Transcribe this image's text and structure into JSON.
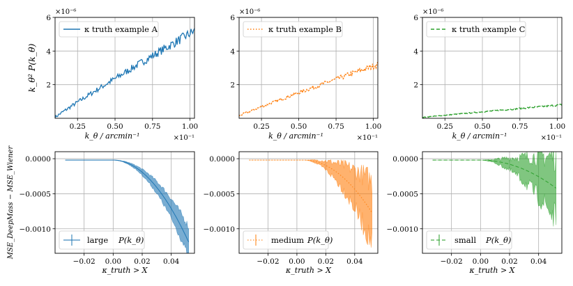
{
  "chart_data": [
    {
      "id": "top-A",
      "type": "line",
      "style": "solid",
      "color": "#1f77b4",
      "legend": "κ truth example A",
      "xlabel": "k_θ / arcmin⁻¹",
      "ylabel": "k_θ² P(k_θ)",
      "xlim": [
        0.01,
        0.103
      ],
      "ylim": [
        0,
        6
      ],
      "xticks": [
        0.025,
        0.05,
        0.075,
        0.1
      ],
      "xtick_labels": [
        "0.25",
        "0.50",
        "0.75",
        "1.00"
      ],
      "yticks": [
        2,
        4,
        6
      ],
      "ytick_labels": [
        "2",
        "4",
        "6"
      ],
      "x_multiplier": "×10⁻¹",
      "y_multiplier": "×10⁻⁶",
      "series": [
        {
          "name": "κ truth example A",
          "x_start": 0.01,
          "x_end": 0.103,
          "y_start": 0.05,
          "y_end": 5.2,
          "noise": 0.22
        }
      ]
    },
    {
      "id": "top-B",
      "type": "line",
      "style": "dotted",
      "color": "#ff7f0e",
      "legend": "κ truth example B",
      "xlabel": "k_θ / arcmin⁻¹",
      "ylabel": "",
      "xlim": [
        0.01,
        0.103
      ],
      "ylim": [
        0,
        6
      ],
      "xticks": [
        0.025,
        0.05,
        0.075,
        0.1
      ],
      "xtick_labels": [
        "0.25",
        "0.50",
        "0.75",
        "1.00"
      ],
      "yticks": [
        2,
        4,
        6
      ],
      "ytick_labels": [
        "2",
        "4",
        "6"
      ],
      "x_multiplier": "×10⁻¹",
      "y_multiplier": "×10⁻⁶",
      "series": [
        {
          "name": "κ truth example B",
          "x_start": 0.01,
          "x_end": 0.103,
          "y_start": 0.15,
          "y_end": 3.2,
          "noise": 0.13
        }
      ]
    },
    {
      "id": "top-C",
      "type": "line",
      "style": "dashed",
      "color": "#2ca02c",
      "legend": "κ truth example C",
      "xlabel": "k_θ / arcmin⁻¹",
      "ylabel": "",
      "xlim": [
        0.01,
        0.103
      ],
      "ylim": [
        0,
        6
      ],
      "xticks": [
        0.025,
        0.05,
        0.075,
        0.1
      ],
      "xtick_labels": [
        "0.25",
        "0.50",
        "0.75",
        "1.00"
      ],
      "yticks": [
        2,
        4,
        6
      ],
      "ytick_labels": [
        "2",
        "4",
        "6"
      ],
      "x_multiplier": "×10⁻¹",
      "y_multiplier": "×10⁻⁶",
      "series": [
        {
          "name": "κ truth example C",
          "x_start": 0.01,
          "x_end": 0.103,
          "y_start": 0.05,
          "y_end": 0.8,
          "noise": 0.04
        }
      ]
    },
    {
      "id": "bottom-large",
      "type": "area",
      "style": "solid",
      "color": "#1f77b4",
      "legend": "large",
      "legend_math": "P(k_θ)",
      "xlabel": "κ_truth > X",
      "ylabel": "MSE_DeepMass − MSE_Wiener",
      "xlim": [
        -0.04,
        0.056
      ],
      "ylim": [
        -0.00135,
        0.0001
      ],
      "xticks": [
        -0.02,
        0.0,
        0.02,
        0.04
      ],
      "xtick_labels": [
        "−0.02",
        "0.00",
        "0.02",
        "0.04"
      ],
      "yticks": [
        0.0,
        -0.0005,
        -0.001
      ],
      "ytick_labels": [
        "0.0000",
        "−0.0005",
        "−0.0010"
      ],
      "series": [
        {
          "name": "large",
          "x_start": -0.033,
          "x_end": 0.052,
          "knee": 0.0,
          "y_end": -0.00117,
          "err_end": 0.00022,
          "err_noise": 0.25
        }
      ]
    },
    {
      "id": "bottom-medium",
      "type": "area",
      "style": "dotted",
      "color": "#ff7f0e",
      "legend": "medium",
      "legend_math": "P(k_θ)",
      "xlabel": "κ_truth > X",
      "ylabel": "",
      "xlim": [
        -0.04,
        0.056
      ],
      "ylim": [
        -0.00135,
        0.0001
      ],
      "xticks": [
        -0.02,
        0.0,
        0.02,
        0.04
      ],
      "xtick_labels": [
        "−0.02",
        "0.00",
        "0.02",
        "0.04"
      ],
      "yticks": [
        0.0,
        -0.0005,
        -0.001
      ],
      "ytick_labels": [
        "0.0000",
        "−0.0005",
        "−0.0010"
      ],
      "series": [
        {
          "name": "medium",
          "x_start": -0.033,
          "x_end": 0.052,
          "knee": 0.005,
          "y_end": -0.00075,
          "err_end": 0.00045,
          "err_noise": 0.45
        }
      ]
    },
    {
      "id": "bottom-small",
      "type": "area",
      "style": "dashed",
      "color": "#2ca02c",
      "legend": "small",
      "legend_math": "P(k_θ)",
      "xlabel": "κ_truth > X",
      "ylabel": "",
      "xlim": [
        -0.04,
        0.056
      ],
      "ylim": [
        -0.00135,
        0.0001
      ],
      "xticks": [
        -0.02,
        0.0,
        0.02,
        0.04
      ],
      "xtick_labels": [
        "−0.02",
        "0.00",
        "0.02",
        "0.04"
      ],
      "yticks": [
        0.0,
        -0.0005,
        -0.001
      ],
      "ytick_labels": [
        "0.0000",
        "−0.0005",
        "−0.0010"
      ],
      "series": [
        {
          "name": "small",
          "x_start": -0.033,
          "x_end": 0.052,
          "knee": 0.0,
          "y_end": -0.0004,
          "err_end": 0.00045,
          "err_noise": 0.5
        }
      ]
    }
  ],
  "colors": {
    "blue": "#1f77b4",
    "orange": "#ff7f0e",
    "green": "#2ca02c",
    "grid": "#b0b0b0"
  }
}
